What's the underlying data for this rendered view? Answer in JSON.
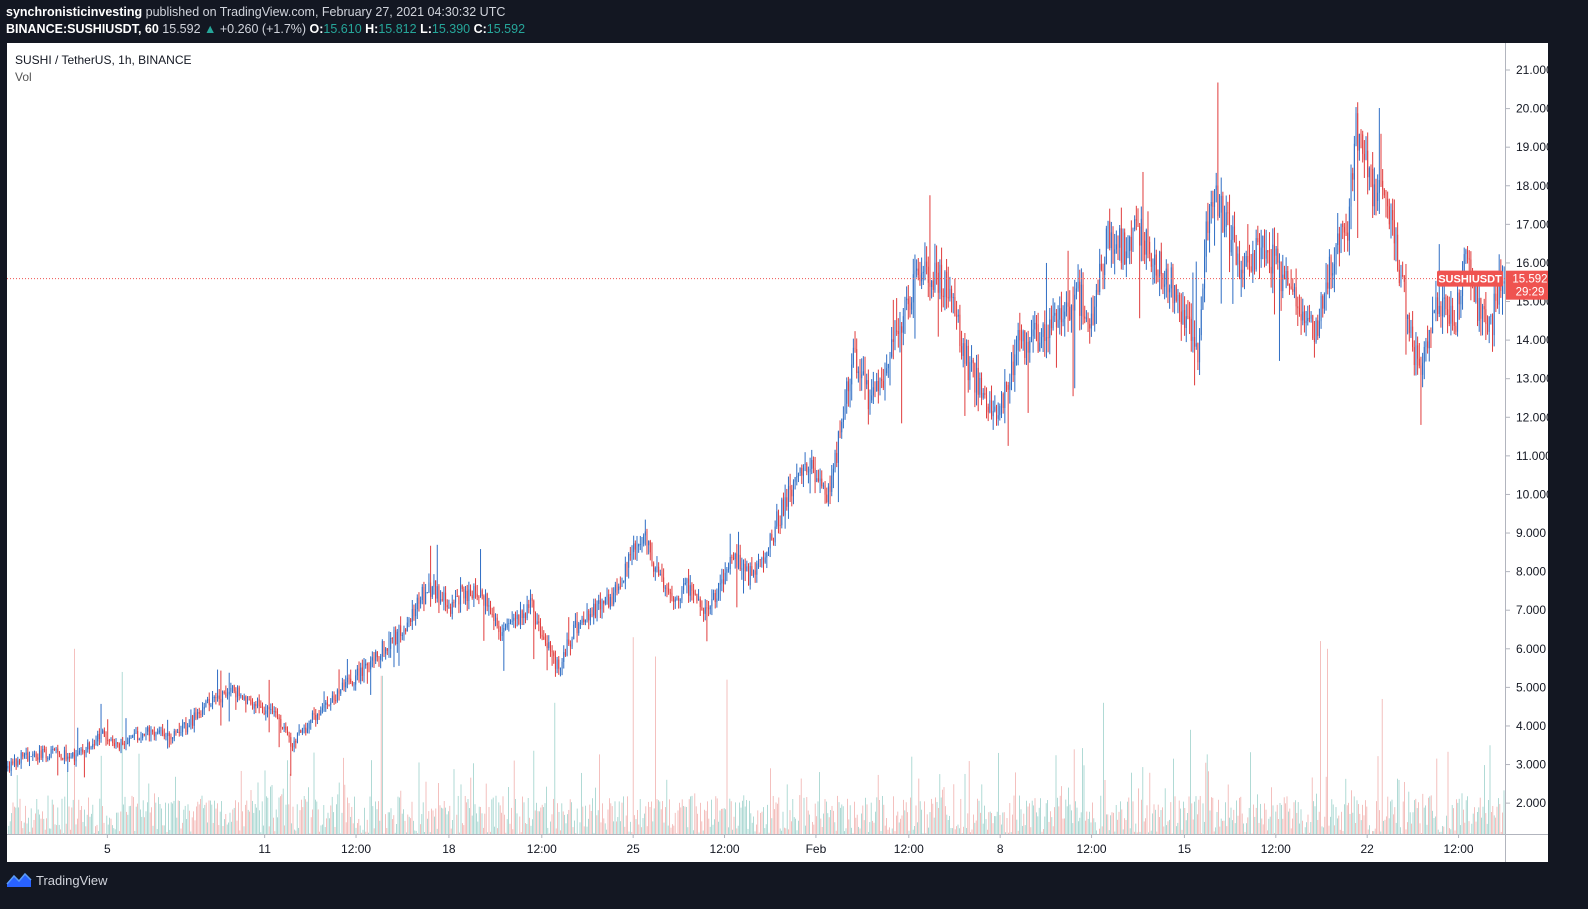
{
  "header": {
    "publisher": "synchronisticinvesting",
    "published_text": "published on TradingView.com, February 27, 2021 04:30:32 UTC",
    "symbol": "BINANCE:SUSHIUSDT, 60",
    "last": "15.592",
    "change_arrow": "▲",
    "change": "+0.260 (+1.7%)",
    "o_label": "O:",
    "o_value": "15.610",
    "h_label": "H:",
    "h_value": "15.812",
    "l_label": "L:",
    "l_value": "15.390",
    "c_label": "C:",
    "c_value": "15.592"
  },
  "legend": {
    "title": "SUSHI / TetherUS, 1h, BINANCE",
    "volume": "Vol"
  },
  "price_tag": {
    "symbol": "SUSHIUSDT",
    "price": "15.592",
    "countdown": "29:29"
  },
  "footer": {
    "brand": "TradingView",
    "icon": "tradingview-logo-icon"
  },
  "colors": {
    "background": "#131722",
    "plot": "#ffffff",
    "up": "#2e6dc4",
    "down": "#e03c3c",
    "volume_up": "#9cd1cb",
    "volume_down": "#f1b0ae",
    "price_tag": "#ef5350"
  },
  "chart_data": {
    "type": "candlestick",
    "title": "SUSHI / TetherUS, 1h, BINANCE",
    "ylim": [
      1.2,
      21.7
    ],
    "y_ticks": [
      2.0,
      3.0,
      4.0,
      5.0,
      6.0,
      7.0,
      8.0,
      9.0,
      10.0,
      11.0,
      12.0,
      13.0,
      14.0,
      15.0,
      16.0,
      17.0,
      18.0,
      19.0,
      20.0,
      21.0
    ],
    "y_tick_labels": [
      "2.000",
      "3.000",
      "4.000",
      "5.000",
      "6.000",
      "7.000",
      "8.000",
      "9.000",
      "10.000",
      "11.000",
      "12.000",
      "13.000",
      "14.000",
      "15.000",
      "16.000",
      "17.000",
      "18.000",
      "19.000",
      "20.000",
      "21.000"
    ],
    "x_ticks": [
      {
        "label": "5",
        "t": 0.067
      },
      {
        "label": "11",
        "t": 0.172
      },
      {
        "label": "12:00",
        "t": 0.233
      },
      {
        "label": "18",
        "t": 0.295
      },
      {
        "label": "12:00",
        "t": 0.357
      },
      {
        "label": "25",
        "t": 0.418
      },
      {
        "label": "12:00",
        "t": 0.479
      },
      {
        "label": "Feb",
        "t": 0.54
      },
      {
        "label": "12:00",
        "t": 0.602
      },
      {
        "label": "8",
        "t": 0.663
      },
      {
        "label": "12:00",
        "t": 0.724
      },
      {
        "label": "15",
        "t": 0.786
      },
      {
        "label": "12:00",
        "t": 0.847
      },
      {
        "label": "22",
        "t": 0.908
      },
      {
        "label": "12:00",
        "t": 0.969
      }
    ],
    "price_path": [
      [
        0.0,
        2.9
      ],
      [
        0.01,
        3.2
      ],
      [
        0.03,
        3.3
      ],
      [
        0.045,
        3.2
      ],
      [
        0.055,
        3.5
      ],
      [
        0.065,
        3.8
      ],
      [
        0.075,
        3.5
      ],
      [
        0.085,
        3.7
      ],
      [
        0.095,
        3.9
      ],
      [
        0.11,
        3.8
      ],
      [
        0.12,
        4.0
      ],
      [
        0.135,
        4.6
      ],
      [
        0.15,
        4.9
      ],
      [
        0.165,
        4.6
      ],
      [
        0.18,
        4.2
      ],
      [
        0.19,
        3.5
      ],
      [
        0.2,
        4.0
      ],
      [
        0.21,
        4.5
      ],
      [
        0.225,
        5.0
      ],
      [
        0.24,
        5.5
      ],
      [
        0.255,
        6.2
      ],
      [
        0.265,
        6.5
      ],
      [
        0.275,
        7.3
      ],
      [
        0.285,
        7.6
      ],
      [
        0.295,
        7.1
      ],
      [
        0.305,
        7.5
      ],
      [
        0.32,
        7.3
      ],
      [
        0.33,
        6.5
      ],
      [
        0.34,
        6.8
      ],
      [
        0.35,
        7.1
      ],
      [
        0.36,
        6.2
      ],
      [
        0.368,
        5.5
      ],
      [
        0.38,
        6.6
      ],
      [
        0.4,
        7.2
      ],
      [
        0.41,
        7.6
      ],
      [
        0.418,
        8.6
      ],
      [
        0.425,
        9.0
      ],
      [
        0.435,
        7.8
      ],
      [
        0.445,
        7.3
      ],
      [
        0.455,
        7.6
      ],
      [
        0.465,
        7.0
      ],
      [
        0.475,
        7.5
      ],
      [
        0.485,
        8.4
      ],
      [
        0.495,
        7.9
      ],
      [
        0.505,
        8.2
      ],
      [
        0.515,
        9.4
      ],
      [
        0.525,
        10.3
      ],
      [
        0.535,
        10.7
      ],
      [
        0.545,
        10.1
      ],
      [
        0.55,
        10.0
      ],
      [
        0.556,
        11.8
      ],
      [
        0.565,
        13.5
      ],
      [
        0.575,
        12.5
      ],
      [
        0.585,
        13.0
      ],
      [
        0.595,
        14.3
      ],
      [
        0.605,
        15.5
      ],
      [
        0.612,
        16.0
      ],
      [
        0.62,
        15.7
      ],
      [
        0.63,
        15.3
      ],
      [
        0.64,
        13.5
      ],
      [
        0.65,
        12.7
      ],
      [
        0.66,
        12.2
      ],
      [
        0.668,
        12.8
      ],
      [
        0.675,
        13.9
      ],
      [
        0.69,
        14.1
      ],
      [
        0.705,
        14.7
      ],
      [
        0.715,
        15.1
      ],
      [
        0.725,
        14.6
      ],
      [
        0.735,
        16.8
      ],
      [
        0.745,
        16.3
      ],
      [
        0.755,
        16.9
      ],
      [
        0.765,
        16.1
      ],
      [
        0.78,
        15.3
      ],
      [
        0.79,
        14.2
      ],
      [
        0.795,
        13.5
      ],
      [
        0.8,
        16.6
      ],
      [
        0.805,
        17.9
      ],
      [
        0.815,
        16.9
      ],
      [
        0.825,
        15.8
      ],
      [
        0.835,
        16.4
      ],
      [
        0.845,
        16.1
      ],
      [
        0.855,
        15.3
      ],
      [
        0.865,
        14.6
      ],
      [
        0.875,
        14.3
      ],
      [
        0.885,
        16.2
      ],
      [
        0.895,
        17.0
      ],
      [
        0.9,
        19.4
      ],
      [
        0.91,
        18.0
      ],
      [
        0.92,
        17.5
      ],
      [
        0.928,
        16.2
      ],
      [
        0.936,
        14.3
      ],
      [
        0.943,
        13.2
      ],
      [
        0.95,
        14.5
      ],
      [
        0.96,
        15.1
      ],
      [
        0.966,
        14.3
      ],
      [
        0.975,
        16.4
      ],
      [
        0.983,
        14.6
      ],
      [
        0.99,
        14.2
      ],
      [
        0.997,
        15.6
      ],
      [
        1.0,
        15.59
      ]
    ],
    "volume_peaks": [
      {
        "t": 0.045,
        "value": 6.0
      },
      {
        "t": 0.077,
        "value": 5.4
      },
      {
        "t": 0.25,
        "value": 5.3
      },
      {
        "t": 0.365,
        "value": 4.6
      },
      {
        "t": 0.418,
        "value": 6.3
      },
      {
        "t": 0.433,
        "value": 5.8
      },
      {
        "t": 0.48,
        "value": 5.2
      },
      {
        "t": 0.732,
        "value": 4.6
      },
      {
        "t": 0.79,
        "value": 3.9
      },
      {
        "t": 0.877,
        "value": 6.2
      },
      {
        "t": 0.881,
        "value": 6.0
      },
      {
        "t": 0.918,
        "value": 4.7
      },
      {
        "t": 0.99,
        "value": 3.5
      }
    ],
    "last_price": 15.592
  }
}
